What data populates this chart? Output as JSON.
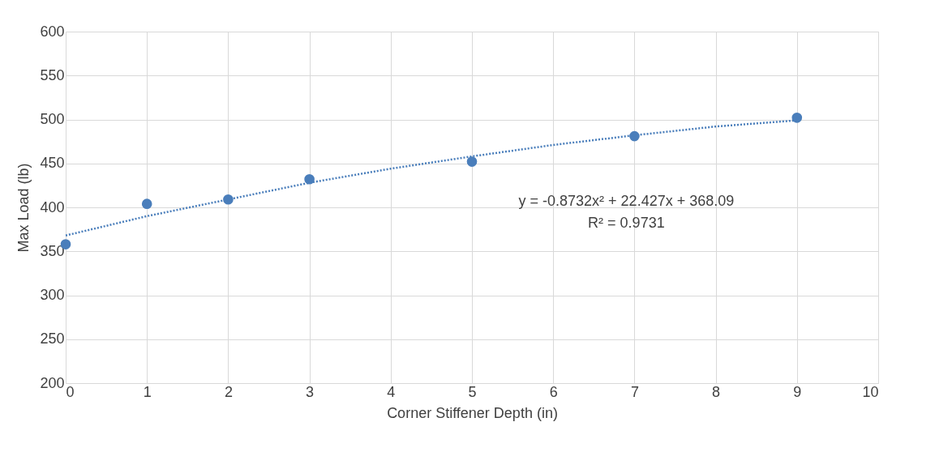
{
  "chart_data": {
    "type": "scatter",
    "xlabel": "Corner Stiffener Depth (in)",
    "ylabel": "Max Load (lb)",
    "xlim": [
      0,
      10
    ],
    "xticks": [
      0,
      1,
      2,
      3,
      4,
      5,
      6,
      7,
      8,
      9,
      10
    ],
    "ylim": [
      200,
      600
    ],
    "yticks": [
      200,
      250,
      300,
      350,
      400,
      450,
      500,
      550,
      600
    ],
    "grid": true,
    "marker": "circle",
    "series": [
      {
        "color": "#4a7ebb",
        "x": [
          0,
          1,
          2,
          3,
          5,
          7,
          9
        ],
        "values": [
          358,
          404,
          409,
          432,
          452,
          481,
          502
        ]
      },
      {
        "type": "line",
        "color": "#4a7ebb",
        "line_style": "dotted",
        "marker": "none",
        "x": [
          0,
          1,
          2,
          3,
          4,
          5,
          6,
          7,
          8,
          9
        ],
        "values": [
          368,
          390,
          409,
          428,
          444,
          458,
          471,
          482,
          492,
          499
        ]
      }
    ],
    "annotations": [
      "y = -0.8732x² + 22.427x + 368.09",
      "R² = 0.9731"
    ]
  }
}
